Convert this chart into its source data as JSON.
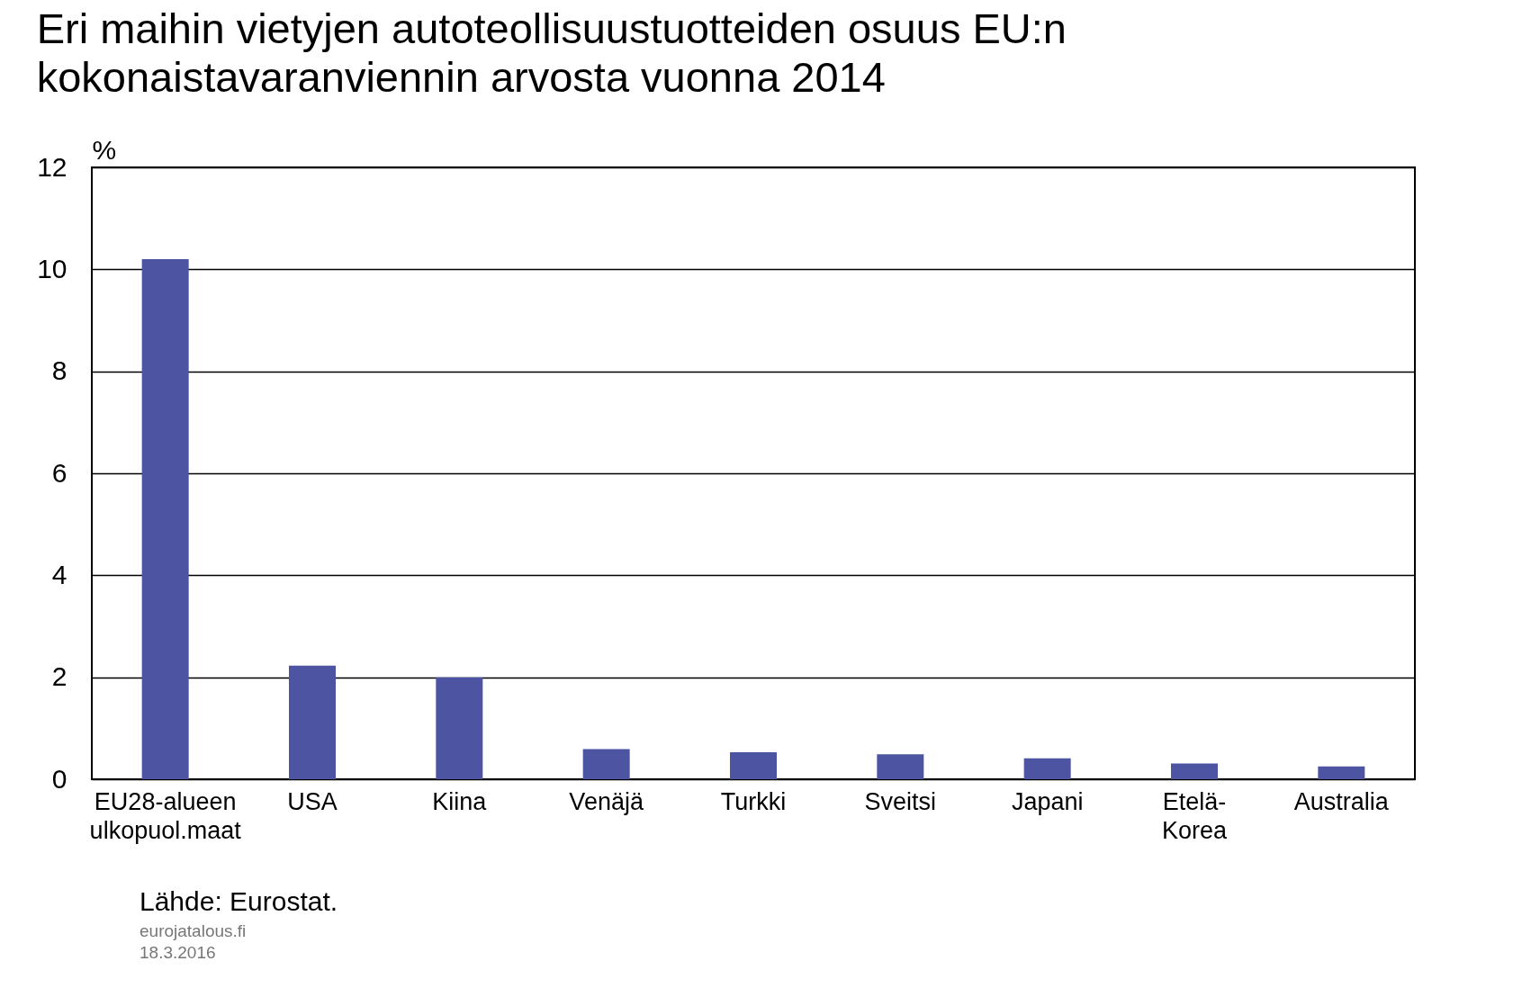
{
  "chart_data": {
    "type": "bar",
    "title": "Eri maihin vietyjen autoteollisuustuotteiden osuus EU:n kokonaistavaranviennin arvosta vuonna 2014",
    "ylabel": "%",
    "categories": [
      "EU28-alueen ulkopuol.maat",
      "USA",
      "Kiina",
      "Venäjä",
      "Turkki",
      "Sveitsi",
      "Japani",
      "Etelä-Korea",
      "Australia"
    ],
    "values": [
      10.2,
      2.23,
      2.0,
      0.59,
      0.53,
      0.49,
      0.41,
      0.31,
      0.25
    ],
    "color": "#4d55a3",
    "ylim": [
      0,
      12
    ],
    "yticks": [
      0,
      2,
      4,
      6,
      8,
      10,
      12
    ],
    "grid": "y",
    "annotations": [
      "Lähde: Eurostat.",
      "eurojatalous.fi",
      "18.3.2016"
    ]
  }
}
